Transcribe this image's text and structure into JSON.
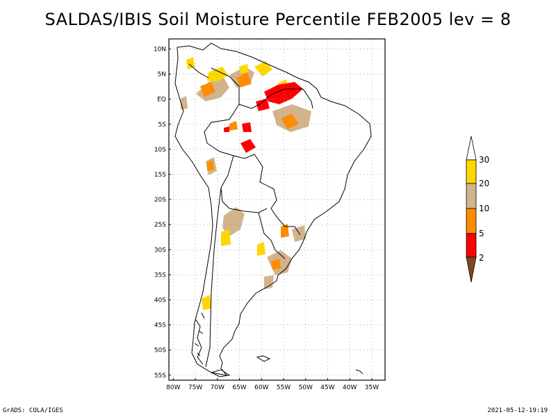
{
  "title": "SALDAS/IBIS Soil Moisture Percentile FEB2005 lev = 8",
  "footer": {
    "left": "GrADS: COLA/IGES",
    "right": "2021-05-12-19:19"
  },
  "map": {
    "lon_range": [
      -81,
      -32
    ],
    "lat_range": [
      -56,
      12
    ],
    "lat_ticks": [
      {
        "value": 10,
        "label": "10N"
      },
      {
        "value": 5,
        "label": "5N"
      },
      {
        "value": 0,
        "label": "EQ"
      },
      {
        "value": -5,
        "label": "5S"
      },
      {
        "value": -10,
        "label": "10S"
      },
      {
        "value": -15,
        "label": "15S"
      },
      {
        "value": -20,
        "label": "20S"
      },
      {
        "value": -25,
        "label": "25S"
      },
      {
        "value": -30,
        "label": "30S"
      },
      {
        "value": -35,
        "label": "35S"
      },
      {
        "value": -40,
        "label": "40S"
      },
      {
        "value": -45,
        "label": "45S"
      },
      {
        "value": -50,
        "label": "50S"
      },
      {
        "value": -55,
        "label": "55S"
      }
    ],
    "lon_ticks": [
      {
        "value": -80,
        "label": "80W"
      },
      {
        "value": -75,
        "label": "75W"
      },
      {
        "value": -70,
        "label": "70W"
      },
      {
        "value": -65,
        "label": "65W"
      },
      {
        "value": -60,
        "label": "60W"
      },
      {
        "value": -55,
        "label": "55W"
      },
      {
        "value": -50,
        "label": "50W"
      },
      {
        "value": -45,
        "label": "45W"
      },
      {
        "value": -40,
        "label": "40W"
      },
      {
        "value": -35,
        "label": "35W"
      }
    ]
  },
  "legend": {
    "levels": [
      "2",
      "5",
      "10",
      "20",
      "30"
    ],
    "colors": {
      "below_2": "#7a4a1e",
      "2_5": "#ff0000",
      "5_10": "#ff8c00",
      "10_20": "#d2b48c",
      "20_30": "#ffd700",
      "above_30": "#ffffff"
    }
  }
}
